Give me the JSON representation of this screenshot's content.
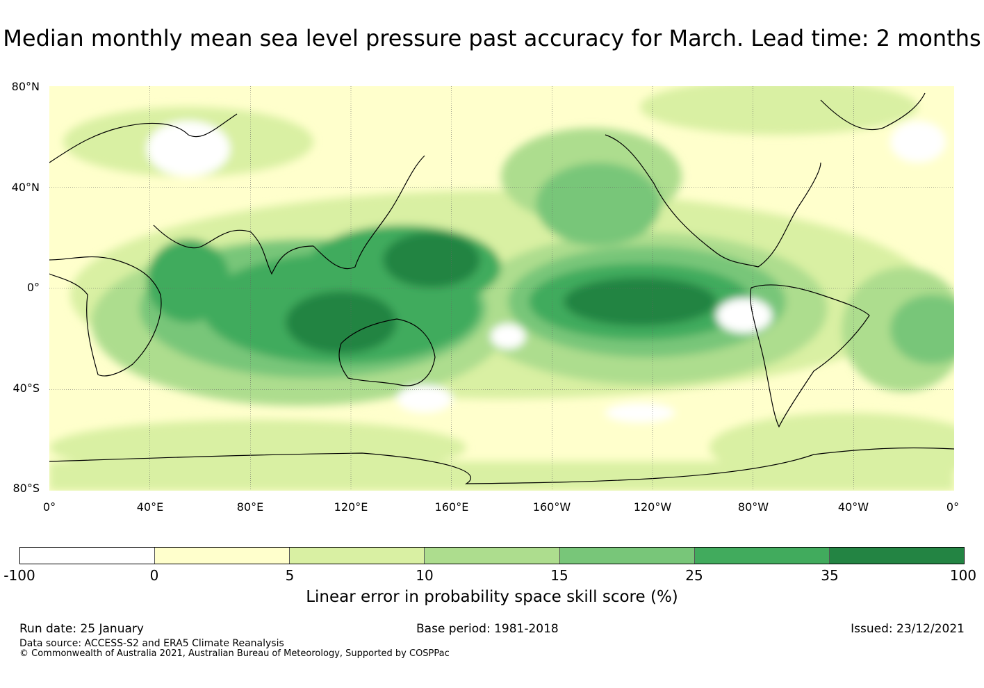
{
  "title": "Median monthly mean sea level pressure past accuracy for March. Lead time: 2 months",
  "map": {
    "lat_labels": [
      "80°N",
      "40°N",
      "0°",
      "40°S",
      "80°S"
    ],
    "lon_labels": [
      "0°",
      "40°E",
      "80°E",
      "120°E",
      "160°E",
      "160°W",
      "120°W",
      "80°W",
      "40°W",
      "0°"
    ],
    "legend": {
      "colors": [
        "#ffffff",
        "#ffffcc",
        "#d9f0a3",
        "#addd8e",
        "#78c679",
        "#41ab5d",
        "#238443"
      ],
      "ticks": [
        "-100",
        "0",
        "5",
        "10",
        "15",
        "25",
        "35",
        "100"
      ],
      "label": "Linear error in probability space skill score (%)"
    }
  },
  "footer": {
    "run_date": "Run date: 25 January",
    "base_period": "Base period: 1981-2018",
    "issued": "Issued: 23/12/2021",
    "data_source": "Data source: ACCESS-S2 and ERA5 Climate Reanalysis",
    "copyright": "© Commonwealth of Australia 2021, Australian Bureau of Meteorology, Supported by COSPPac"
  }
}
